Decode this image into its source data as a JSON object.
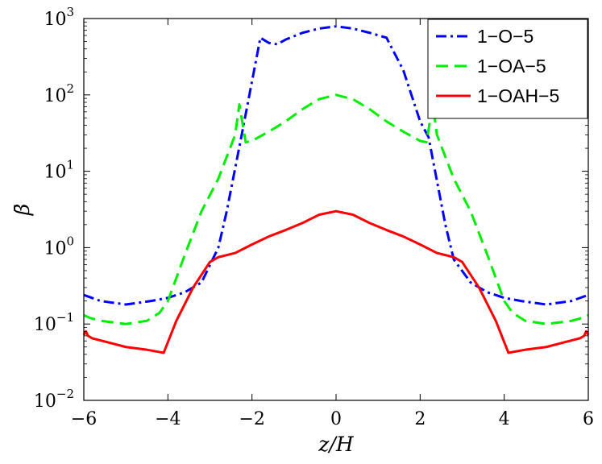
{
  "chart_data": {
    "type": "line",
    "xlabel": "z/H",
    "ylabel": "β̄",
    "xlim": [
      -6,
      6
    ],
    "ylim": [
      0.01,
      1000
    ],
    "yscale": "log",
    "grid": false,
    "legend_position": "top-right",
    "x_ticks": [
      -6,
      -4,
      -2,
      0,
      2,
      4,
      6
    ],
    "x_tick_labels": [
      "−6",
      "−4",
      "−2",
      "0",
      "2",
      "4",
      "6"
    ],
    "y_ticks": [
      0.01,
      0.1,
      1,
      10,
      100,
      1000
    ],
    "y_tick_labels": [
      {
        "base": "10",
        "exp": "−2"
      },
      {
        "base": "10",
        "exp": "−1"
      },
      {
        "base": "10",
        "exp": "0"
      },
      {
        "base": "10",
        "exp": "1"
      },
      {
        "base": "10",
        "exp": "2"
      },
      {
        "base": "10",
        "exp": "3"
      }
    ],
    "series": [
      {
        "name": "1−O−5",
        "color": "#0000ff",
        "dash": "dashdot",
        "x": [
          -6.0,
          -5.6,
          -5.0,
          -4.4,
          -4.0,
          -3.6,
          -3.2,
          -2.8,
          -2.6,
          -2.2,
          -2.0,
          -1.8,
          -1.6,
          -1.4,
          -1.2,
          -0.8,
          -0.4,
          0.0,
          0.4,
          0.8,
          1.2,
          1.6,
          2.0,
          2.2,
          2.6,
          2.8,
          3.2,
          3.6,
          4.0,
          4.4,
          5.0,
          5.6,
          6.0
        ],
        "y": [
          0.24,
          0.2,
          0.18,
          0.2,
          0.22,
          0.26,
          0.35,
          1.0,
          3.0,
          40,
          150,
          560,
          480,
          460,
          530,
          650,
          740,
          790,
          740,
          650,
          560,
          210,
          45,
          28,
          2.0,
          0.7,
          0.35,
          0.26,
          0.22,
          0.2,
          0.18,
          0.2,
          0.24
        ]
      },
      {
        "name": "1−OA−5",
        "color": "#00ee00",
        "dash": "dashed",
        "x": [
          -6.0,
          -5.85,
          -5.6,
          -5.0,
          -4.5,
          -4.2,
          -4.0,
          -3.6,
          -3.2,
          -2.8,
          -2.4,
          -2.3,
          -2.15,
          -2.0,
          -1.6,
          -1.2,
          -0.8,
          -0.4,
          0.0,
          0.4,
          0.8,
          1.2,
          1.6,
          2.0,
          2.15,
          2.3,
          2.4,
          2.8,
          3.2,
          3.6,
          4.0,
          4.2,
          4.5,
          5.0,
          5.6,
          5.85,
          6.0
        ],
        "y": [
          0.13,
          0.12,
          0.11,
          0.1,
          0.11,
          0.14,
          0.2,
          0.8,
          3.0,
          8.0,
          30,
          75,
          24,
          25,
          33,
          45,
          65,
          88,
          100,
          88,
          65,
          45,
          33,
          25,
          24,
          75,
          30,
          8.0,
          3.0,
          0.8,
          0.2,
          0.14,
          0.11,
          0.1,
          0.11,
          0.12,
          0.13
        ]
      },
      {
        "name": "1−OAH−5",
        "color": "#ff0000",
        "dash": "solid",
        "x": [
          -6.0,
          -5.95,
          -5.9,
          -5.8,
          -5.4,
          -5.0,
          -4.5,
          -4.1,
          -3.8,
          -3.4,
          -3.0,
          -2.8,
          -2.4,
          -2.0,
          -1.6,
          -1.2,
          -0.8,
          -0.4,
          0.0,
          0.4,
          0.8,
          1.2,
          1.6,
          2.0,
          2.4,
          2.8,
          3.0,
          3.4,
          3.8,
          4.1,
          4.5,
          5.0,
          5.4,
          5.8,
          5.9,
          5.95,
          6.0
        ],
        "y": [
          0.072,
          0.08,
          0.07,
          0.065,
          0.057,
          0.05,
          0.046,
          0.042,
          0.11,
          0.3,
          0.65,
          0.75,
          0.85,
          1.1,
          1.4,
          1.7,
          2.1,
          2.7,
          3.0,
          2.7,
          2.1,
          1.7,
          1.4,
          1.1,
          0.85,
          0.75,
          0.65,
          0.3,
          0.11,
          0.042,
          0.046,
          0.05,
          0.057,
          0.065,
          0.07,
          0.08,
          0.072
        ]
      }
    ]
  }
}
